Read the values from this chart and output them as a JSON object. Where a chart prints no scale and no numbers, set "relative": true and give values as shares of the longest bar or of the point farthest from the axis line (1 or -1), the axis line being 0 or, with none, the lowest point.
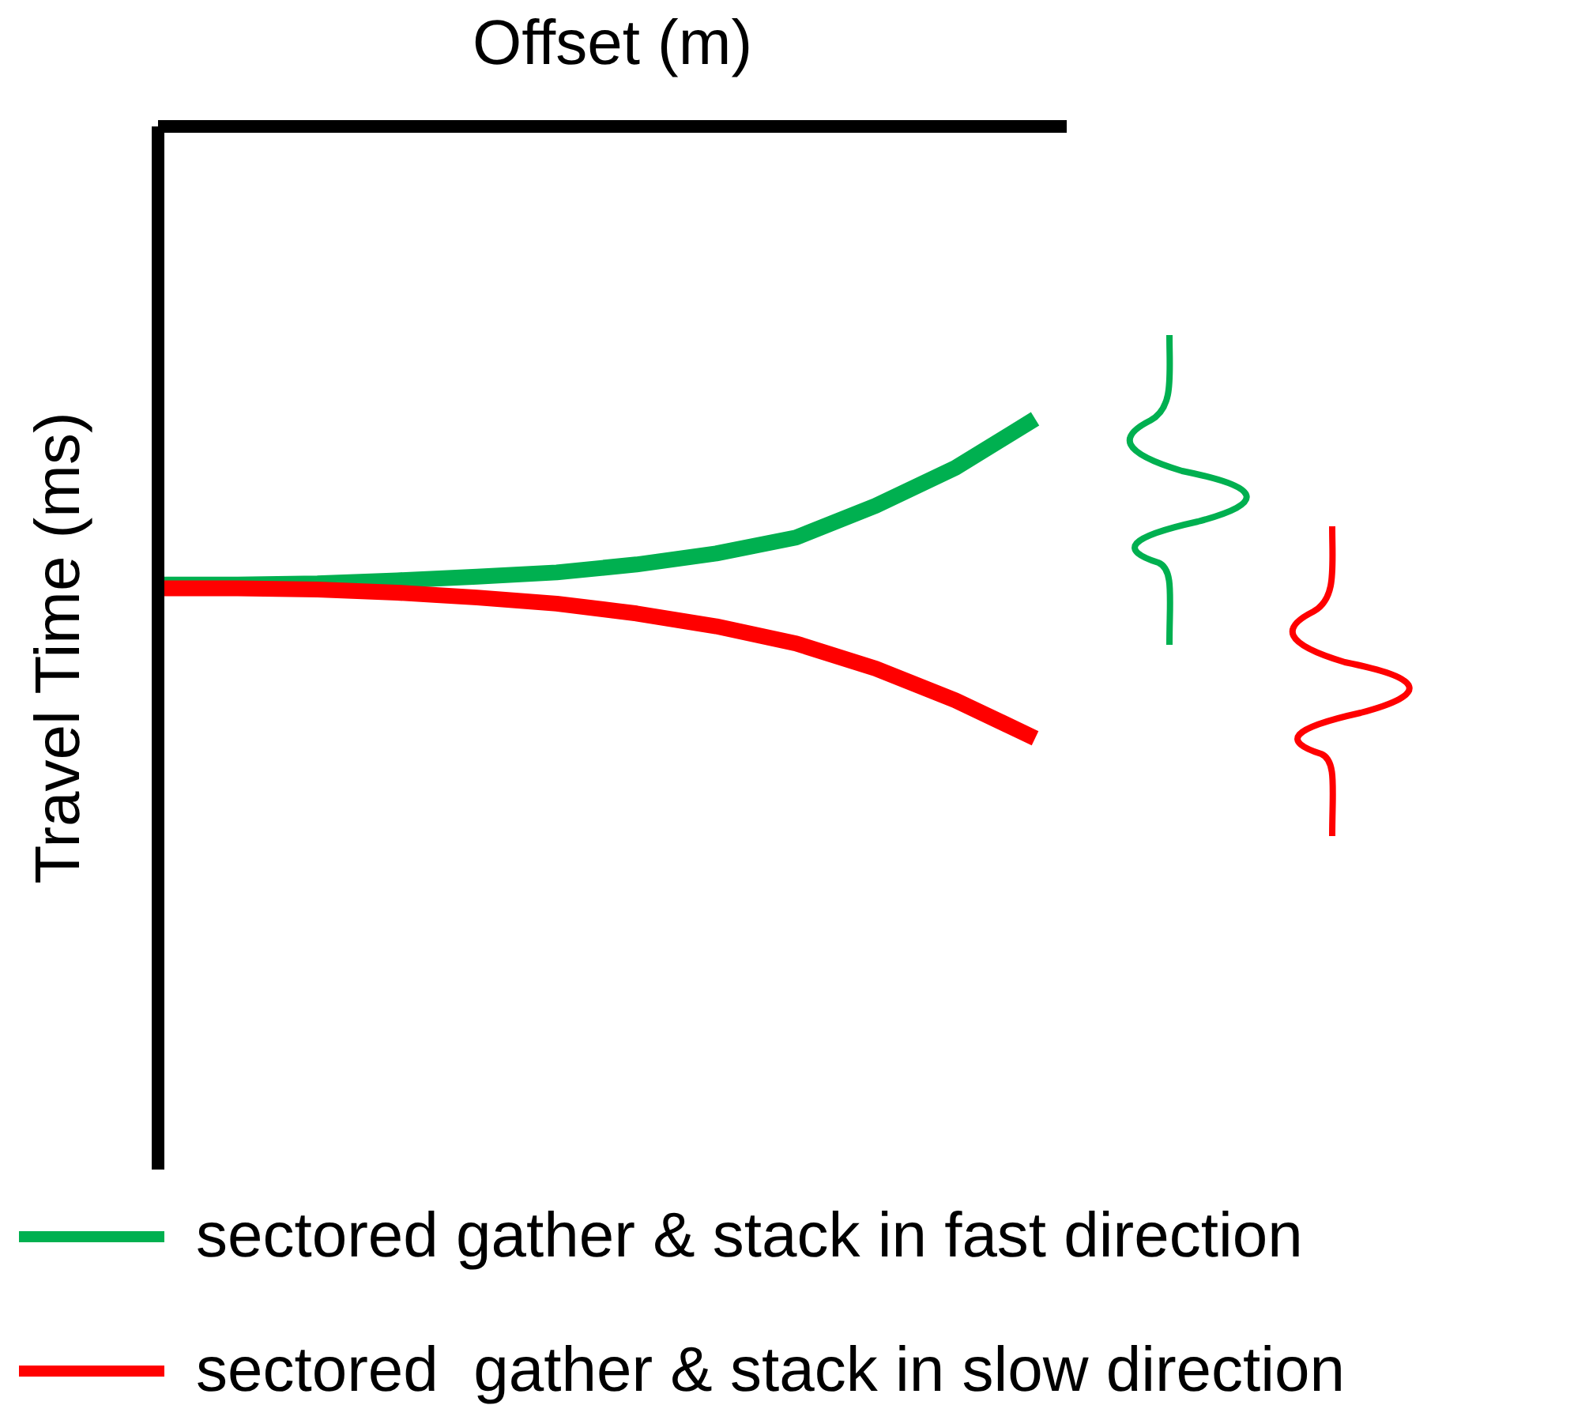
{
  "chart_data": {
    "type": "line",
    "relative": true,
    "xlabel": "Offset (m)",
    "ylabel": "Travel Time (ms)",
    "categories": [
      null,
      null,
      null,
      null,
      null,
      null,
      null,
      null,
      null,
      null,
      null,
      null
    ],
    "series": [
      {
        "name": "sectored gather & stack in fast direction",
        "color": "#00b050",
        "values": [
          -0.749,
          -0.749,
          -0.747,
          -0.742,
          -0.736,
          -0.729,
          -0.716,
          -0.698,
          -0.672,
          -0.62,
          -0.558,
          -0.478
        ]
      },
      {
        "name": "sectored  gather & stack in slow direction",
        "color": "#ff0000",
        "values": [
          -0.755,
          -0.755,
          -0.757,
          -0.762,
          -0.77,
          -0.78,
          -0.796,
          -0.817,
          -0.845,
          -0.886,
          -0.938,
          -1
        ]
      }
    ],
    "legend": "bottom",
    "grid": false,
    "marker": "none",
    "line_style": "solid"
  }
}
